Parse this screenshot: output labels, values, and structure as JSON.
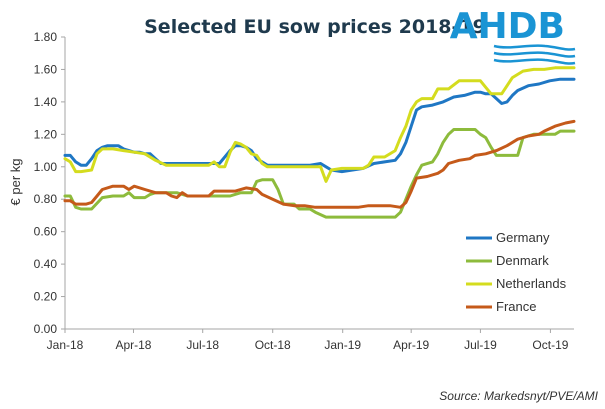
{
  "logo": {
    "text": "AHDB",
    "color": "#1a94d4"
  },
  "source": "Source: Markedsnyt/PVE/AMI",
  "chart_data": {
    "type": "line",
    "title": "Selected EU sow prices 2018-19",
    "ylabel": "€ per kg",
    "xlabel": "",
    "ylim": [
      0,
      1.8
    ],
    "yticks": [
      "0.00",
      "0.20",
      "0.40",
      "0.60",
      "0.80",
      "1.00",
      "1.20",
      "1.40",
      "1.60",
      "1.80"
    ],
    "xlim": [
      "2018-01-01",
      "2019-11-01"
    ],
    "xticks": [
      {
        "date": "2018-01-01",
        "label": "Jan-18"
      },
      {
        "date": "2018-04-01",
        "label": "Apr-18"
      },
      {
        "date": "2018-07-01",
        "label": "Jul-18"
      },
      {
        "date": "2018-10-01",
        "label": "Oct-18"
      },
      {
        "date": "2019-01-01",
        "label": "Jan-19"
      },
      {
        "date": "2019-04-01",
        "label": "Apr-19"
      },
      {
        "date": "2019-07-01",
        "label": "Jul-19"
      },
      {
        "date": "2019-10-01",
        "label": "Oct-19"
      }
    ],
    "grid": false,
    "legend_position": "bottom-right",
    "series": [
      {
        "name": "Germany",
        "color": "#1f77c4",
        "points": [
          [
            "2018-01-01",
            1.07
          ],
          [
            "2018-01-08",
            1.07
          ],
          [
            "2018-01-15",
            1.03
          ],
          [
            "2018-01-22",
            1.01
          ],
          [
            "2018-01-29",
            1.01
          ],
          [
            "2018-02-05",
            1.05
          ],
          [
            "2018-02-12",
            1.1
          ],
          [
            "2018-02-19",
            1.12
          ],
          [
            "2018-02-26",
            1.13
          ],
          [
            "2018-03-05",
            1.13
          ],
          [
            "2018-03-12",
            1.13
          ],
          [
            "2018-03-19",
            1.11
          ],
          [
            "2018-03-26",
            1.1
          ],
          [
            "2018-04-02",
            1.09
          ],
          [
            "2018-04-09",
            1.09
          ],
          [
            "2018-04-16",
            1.08
          ],
          [
            "2018-04-23",
            1.08
          ],
          [
            "2018-04-30",
            1.05
          ],
          [
            "2018-05-07",
            1.02
          ],
          [
            "2018-05-14",
            1.02
          ],
          [
            "2018-05-28",
            1.02
          ],
          [
            "2018-06-11",
            1.02
          ],
          [
            "2018-06-25",
            1.02
          ],
          [
            "2018-07-09",
            1.02
          ],
          [
            "2018-07-23",
            1.02
          ],
          [
            "2018-08-06",
            1.1
          ],
          [
            "2018-08-13",
            1.13
          ],
          [
            "2018-08-20",
            1.13
          ],
          [
            "2018-08-27",
            1.12
          ],
          [
            "2018-09-03",
            1.1
          ],
          [
            "2018-09-10",
            1.05
          ],
          [
            "2018-09-17",
            1.03
          ],
          [
            "2018-09-24",
            1.01
          ],
          [
            "2018-10-08",
            1.01
          ],
          [
            "2018-10-22",
            1.01
          ],
          [
            "2018-11-05",
            1.01
          ],
          [
            "2018-11-19",
            1.01
          ],
          [
            "2018-12-03",
            1.02
          ],
          [
            "2018-12-10",
            1.0
          ],
          [
            "2018-12-17",
            0.98
          ],
          [
            "2018-12-31",
            0.97
          ],
          [
            "2019-01-14",
            0.98
          ],
          [
            "2019-01-28",
            0.99
          ],
          [
            "2019-02-11",
            1.02
          ],
          [
            "2019-02-25",
            1.03
          ],
          [
            "2019-03-11",
            1.04
          ],
          [
            "2019-03-18",
            1.08
          ],
          [
            "2019-03-25",
            1.15
          ],
          [
            "2019-04-01",
            1.25
          ],
          [
            "2019-04-08",
            1.35
          ],
          [
            "2019-04-15",
            1.37
          ],
          [
            "2019-04-29",
            1.38
          ],
          [
            "2019-05-13",
            1.4
          ],
          [
            "2019-05-27",
            1.43
          ],
          [
            "2019-06-10",
            1.44
          ],
          [
            "2019-06-17",
            1.45
          ],
          [
            "2019-06-24",
            1.46
          ],
          [
            "2019-07-01",
            1.46
          ],
          [
            "2019-07-08",
            1.45
          ],
          [
            "2019-07-15",
            1.45
          ],
          [
            "2019-07-22",
            1.42
          ],
          [
            "2019-07-29",
            1.39
          ],
          [
            "2019-08-05",
            1.4
          ],
          [
            "2019-08-12",
            1.44
          ],
          [
            "2019-08-19",
            1.47
          ],
          [
            "2019-09-02",
            1.5
          ],
          [
            "2019-09-16",
            1.51
          ],
          [
            "2019-09-30",
            1.53
          ],
          [
            "2019-10-14",
            1.54
          ],
          [
            "2019-10-28",
            1.54
          ],
          [
            "2019-11-01",
            1.54
          ]
        ]
      },
      {
        "name": "Denmark",
        "color": "#8dbb3c",
        "points": [
          [
            "2018-01-01",
            0.82
          ],
          [
            "2018-01-08",
            0.82
          ],
          [
            "2018-01-15",
            0.75
          ],
          [
            "2018-01-22",
            0.74
          ],
          [
            "2018-02-05",
            0.74
          ],
          [
            "2018-02-19",
            0.81
          ],
          [
            "2018-03-05",
            0.82
          ],
          [
            "2018-03-19",
            0.82
          ],
          [
            "2018-03-26",
            0.84
          ],
          [
            "2018-04-02",
            0.81
          ],
          [
            "2018-04-16",
            0.81
          ],
          [
            "2018-04-23",
            0.83
          ],
          [
            "2018-04-30",
            0.84
          ],
          [
            "2018-05-14",
            0.84
          ],
          [
            "2018-05-28",
            0.84
          ],
          [
            "2018-06-11",
            0.82
          ],
          [
            "2018-06-25",
            0.82
          ],
          [
            "2018-07-09",
            0.82
          ],
          [
            "2018-07-23",
            0.82
          ],
          [
            "2018-08-06",
            0.82
          ],
          [
            "2018-08-20",
            0.84
          ],
          [
            "2018-09-03",
            0.84
          ],
          [
            "2018-09-10",
            0.91
          ],
          [
            "2018-09-17",
            0.92
          ],
          [
            "2018-10-01",
            0.92
          ],
          [
            "2018-10-08",
            0.86
          ],
          [
            "2018-10-15",
            0.77
          ],
          [
            "2018-10-29",
            0.77
          ],
          [
            "2018-11-05",
            0.74
          ],
          [
            "2018-11-19",
            0.74
          ],
          [
            "2018-11-26",
            0.72
          ],
          [
            "2018-12-10",
            0.69
          ],
          [
            "2018-12-24",
            0.69
          ],
          [
            "2019-01-14",
            0.69
          ],
          [
            "2019-02-04",
            0.69
          ],
          [
            "2019-02-25",
            0.69
          ],
          [
            "2019-03-11",
            0.69
          ],
          [
            "2019-03-18",
            0.72
          ],
          [
            "2019-03-25",
            0.8
          ],
          [
            "2019-04-01",
            0.88
          ],
          [
            "2019-04-08",
            0.95
          ],
          [
            "2019-04-15",
            1.01
          ],
          [
            "2019-04-29",
            1.03
          ],
          [
            "2019-05-06",
            1.08
          ],
          [
            "2019-05-13",
            1.15
          ],
          [
            "2019-05-20",
            1.2
          ],
          [
            "2019-05-27",
            1.23
          ],
          [
            "2019-06-10",
            1.23
          ],
          [
            "2019-06-24",
            1.23
          ],
          [
            "2019-07-01",
            1.2
          ],
          [
            "2019-07-08",
            1.18
          ],
          [
            "2019-07-15",
            1.12
          ],
          [
            "2019-07-22",
            1.07
          ],
          [
            "2019-08-05",
            1.07
          ],
          [
            "2019-08-19",
            1.07
          ],
          [
            "2019-08-26",
            1.18
          ],
          [
            "2019-09-09",
            1.2
          ],
          [
            "2019-09-23",
            1.2
          ],
          [
            "2019-10-07",
            1.2
          ],
          [
            "2019-10-14",
            1.22
          ],
          [
            "2019-10-28",
            1.22
          ],
          [
            "2019-11-01",
            1.22
          ]
        ]
      },
      {
        "name": "Netherlands",
        "color": "#d4dc1e",
        "points": [
          [
            "2018-01-01",
            1.05
          ],
          [
            "2018-01-08",
            1.03
          ],
          [
            "2018-01-15",
            0.97
          ],
          [
            "2018-01-22",
            0.97
          ],
          [
            "2018-02-05",
            0.98
          ],
          [
            "2018-02-12",
            1.08
          ],
          [
            "2018-02-19",
            1.11
          ],
          [
            "2018-03-05",
            1.11
          ],
          [
            "2018-03-19",
            1.1
          ],
          [
            "2018-04-02",
            1.09
          ],
          [
            "2018-04-16",
            1.08
          ],
          [
            "2018-04-30",
            1.04
          ],
          [
            "2018-05-14",
            1.01
          ],
          [
            "2018-05-28",
            1.01
          ],
          [
            "2018-06-11",
            1.01
          ],
          [
            "2018-06-25",
            1.01
          ],
          [
            "2018-07-09",
            1.01
          ],
          [
            "2018-07-16",
            1.03
          ],
          [
            "2018-07-23",
            1.0
          ],
          [
            "2018-07-30",
            1.0
          ],
          [
            "2018-08-06",
            1.09
          ],
          [
            "2018-08-13",
            1.15
          ],
          [
            "2018-08-20",
            1.14
          ],
          [
            "2018-08-27",
            1.12
          ],
          [
            "2018-09-03",
            1.08
          ],
          [
            "2018-09-10",
            1.07
          ],
          [
            "2018-09-17",
            1.02
          ],
          [
            "2018-09-24",
            1.0
          ],
          [
            "2018-10-08",
            1.0
          ],
          [
            "2018-10-22",
            1.0
          ],
          [
            "2018-11-05",
            1.0
          ],
          [
            "2018-11-19",
            1.0
          ],
          [
            "2018-12-03",
            1.0
          ],
          [
            "2018-12-10",
            0.91
          ],
          [
            "2018-12-17",
            0.98
          ],
          [
            "2018-12-31",
            0.99
          ],
          [
            "2019-01-14",
            0.99
          ],
          [
            "2019-01-28",
            0.99
          ],
          [
            "2019-02-04",
            1.01
          ],
          [
            "2019-02-11",
            1.06
          ],
          [
            "2019-02-25",
            1.06
          ],
          [
            "2019-03-11",
            1.1
          ],
          [
            "2019-03-18",
            1.18
          ],
          [
            "2019-03-25",
            1.25
          ],
          [
            "2019-04-01",
            1.35
          ],
          [
            "2019-04-08",
            1.4
          ],
          [
            "2019-04-15",
            1.42
          ],
          [
            "2019-04-29",
            1.42
          ],
          [
            "2019-05-06",
            1.48
          ],
          [
            "2019-05-20",
            1.48
          ],
          [
            "2019-06-03",
            1.53
          ],
          [
            "2019-06-17",
            1.53
          ],
          [
            "2019-07-01",
            1.53
          ],
          [
            "2019-07-08",
            1.49
          ],
          [
            "2019-07-15",
            1.45
          ],
          [
            "2019-07-29",
            1.45
          ],
          [
            "2019-08-12",
            1.55
          ],
          [
            "2019-08-26",
            1.59
          ],
          [
            "2019-09-09",
            1.6
          ],
          [
            "2019-09-23",
            1.6
          ],
          [
            "2019-10-07",
            1.61
          ],
          [
            "2019-10-21",
            1.61
          ],
          [
            "2019-11-01",
            1.61
          ]
        ]
      },
      {
        "name": "France",
        "color": "#c55a1a",
        "points": [
          [
            "2018-01-01",
            0.79
          ],
          [
            "2018-01-08",
            0.79
          ],
          [
            "2018-01-15",
            0.77
          ],
          [
            "2018-01-29",
            0.77
          ],
          [
            "2018-02-05",
            0.78
          ],
          [
            "2018-02-12",
            0.82
          ],
          [
            "2018-02-19",
            0.86
          ],
          [
            "2018-03-05",
            0.88
          ],
          [
            "2018-03-19",
            0.88
          ],
          [
            "2018-03-26",
            0.86
          ],
          [
            "2018-04-02",
            0.88
          ],
          [
            "2018-04-16",
            0.86
          ],
          [
            "2018-04-30",
            0.84
          ],
          [
            "2018-05-14",
            0.84
          ],
          [
            "2018-05-21",
            0.82
          ],
          [
            "2018-05-28",
            0.81
          ],
          [
            "2018-06-04",
            0.84
          ],
          [
            "2018-06-11",
            0.82
          ],
          [
            "2018-06-25",
            0.82
          ],
          [
            "2018-07-09",
            0.82
          ],
          [
            "2018-07-16",
            0.85
          ],
          [
            "2018-07-30",
            0.85
          ],
          [
            "2018-08-13",
            0.85
          ],
          [
            "2018-08-27",
            0.87
          ],
          [
            "2018-09-10",
            0.86
          ],
          [
            "2018-09-17",
            0.83
          ],
          [
            "2018-10-01",
            0.8
          ],
          [
            "2018-10-15",
            0.77
          ],
          [
            "2018-10-29",
            0.76
          ],
          [
            "2018-11-12",
            0.76
          ],
          [
            "2018-11-26",
            0.75
          ],
          [
            "2018-12-10",
            0.75
          ],
          [
            "2018-12-24",
            0.75
          ],
          [
            "2019-01-07",
            0.75
          ],
          [
            "2019-01-21",
            0.75
          ],
          [
            "2019-02-04",
            0.76
          ],
          [
            "2019-02-18",
            0.76
          ],
          [
            "2019-03-04",
            0.76
          ],
          [
            "2019-03-18",
            0.75
          ],
          [
            "2019-03-25",
            0.78
          ],
          [
            "2019-04-01",
            0.85
          ],
          [
            "2019-04-08",
            0.93
          ],
          [
            "2019-04-22",
            0.94
          ],
          [
            "2019-05-06",
            0.96
          ],
          [
            "2019-05-13",
            0.98
          ],
          [
            "2019-05-20",
            1.02
          ],
          [
            "2019-06-03",
            1.04
          ],
          [
            "2019-06-17",
            1.05
          ],
          [
            "2019-06-24",
            1.07
          ],
          [
            "2019-07-08",
            1.08
          ],
          [
            "2019-07-22",
            1.1
          ],
          [
            "2019-08-05",
            1.13
          ],
          [
            "2019-08-19",
            1.17
          ],
          [
            "2019-09-02",
            1.19
          ],
          [
            "2019-09-16",
            1.2
          ],
          [
            "2019-09-23",
            1.22
          ],
          [
            "2019-10-07",
            1.25
          ],
          [
            "2019-10-21",
            1.27
          ],
          [
            "2019-11-01",
            1.28
          ]
        ]
      }
    ]
  }
}
